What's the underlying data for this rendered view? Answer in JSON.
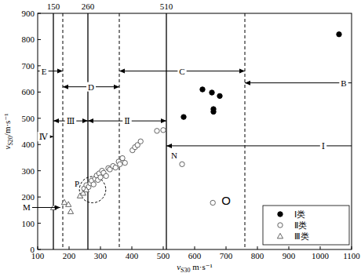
{
  "chart_data": {
    "type": "scatter",
    "xlabel": {
      "symbol": "v",
      "sub": "S30",
      "unit": " m·s⁻¹"
    },
    "ylabel": {
      "symbol": "v",
      "sub": "S20",
      "unit": "/m·s⁻¹"
    },
    "xlim": [
      100,
      1100
    ],
    "xticks": [
      100,
      200,
      300,
      400,
      500,
      600,
      700,
      800,
      900,
      1000,
      1100
    ],
    "ylim": [
      0,
      900
    ],
    "yticks": [
      0,
      100,
      200,
      300,
      400,
      500,
      600,
      700,
      800,
      900
    ],
    "grid": false,
    "legend": "lower right",
    "series": [
      {
        "name": "Ⅰ类",
        "color": "#000000",
        "marker": "circle-filled",
        "x": [
          565,
          625,
          655,
          660,
          660,
          680,
          1060
        ],
        "values": [
          505,
          610,
          598,
          535,
          525,
          585,
          820
        ]
      },
      {
        "name": "Ⅱ类",
        "color": "#555555",
        "marker": "circle-open",
        "x": [
          248,
          255,
          262,
          268,
          272,
          278,
          283,
          288,
          292,
          296,
          300,
          305,
          310,
          318,
          325,
          330,
          340,
          348,
          358,
          362,
          370,
          378,
          402,
          410,
          418,
          428,
          480,
          500,
          560,
          658
        ],
        "values": [
          232,
          245,
          238,
          252,
          262,
          248,
          270,
          282,
          265,
          290,
          275,
          300,
          292,
          280,
          310,
          305,
          318,
          312,
          335,
          325,
          348,
          330,
          378,
          390,
          398,
          412,
          452,
          455,
          325,
          178
        ]
      },
      {
        "name": "Ⅲ类",
        "color": "#555555",
        "marker": "triangle-open",
        "x": [
          150,
          185,
          198,
          205,
          235,
          245,
          255
        ],
        "values": [
          160,
          180,
          172,
          145,
          205,
          215,
          228
        ]
      }
    ],
    "vlines": [
      {
        "x": 150,
        "line_style": "solid",
        "label": "150"
      },
      {
        "x": 180,
        "line_style": "dashed"
      },
      {
        "x": 260,
        "line_style": "solid",
        "label": "260"
      },
      {
        "x": 360,
        "line_style": "dashed"
      },
      {
        "x": 510,
        "line_style": "solid",
        "label": "510"
      },
      {
        "x": 760,
        "line_style": "dashed"
      }
    ],
    "ranges": [
      {
        "label": "E",
        "from": 100,
        "to": 180,
        "y": 680,
        "label_x": 120
      },
      {
        "label": "D",
        "from": 180,
        "to": 360,
        "y": 620,
        "label_x": 270
      },
      {
        "label": "C",
        "from": 360,
        "to": 760,
        "y": 680,
        "label_x": 560
      },
      {
        "label": "B",
        "from": 760,
        "to": 1100,
        "y": 635,
        "label_x": 1075
      },
      {
        "label": "Ⅳ",
        "from": 100,
        "to": 150,
        "y": 430,
        "label_x": 118
      },
      {
        "label": "Ⅲ",
        "from": 150,
        "to": 260,
        "y": 490,
        "label_x": 205
      },
      {
        "label": "Ⅱ",
        "from": 260,
        "to": 510,
        "y": 490,
        "label_x": 385
      },
      {
        "label": "Ⅰ",
        "from": 510,
        "to": 1100,
        "y": 395,
        "label_x": 1010
      }
    ],
    "annotations": [
      {
        "text": "N",
        "x": 535,
        "y": 360
      },
      {
        "text": "O",
        "x": 700,
        "y": 185
      },
      {
        "text": "P",
        "x": 225,
        "y": 250
      },
      {
        "text": "M",
        "x": 65,
        "y": 160,
        "arrow_to": [
          172,
          160
        ]
      }
    ],
    "circle": {
      "x": 275,
      "y": 228,
      "rx": 42,
      "ry": 50
    }
  }
}
